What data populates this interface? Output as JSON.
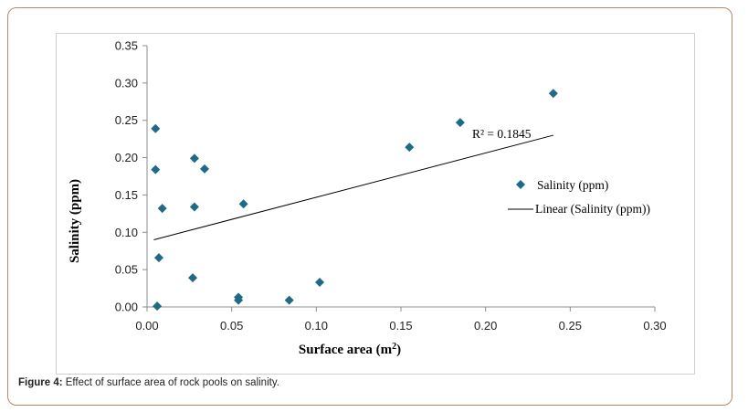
{
  "chart_data": {
    "type": "scatter",
    "title": "",
    "xlabel": "Surface area (m",
    "xlabel_sup": "2",
    "xlabel_end": ")",
    "ylabel": "Salinity (ppm)",
    "xlim": [
      0,
      0.3
    ],
    "ylim": [
      0,
      0.35
    ],
    "x_ticks": [
      "0.00",
      "0.05",
      "0.10",
      "0.15",
      "0.20",
      "0.25",
      "0.30"
    ],
    "y_ticks": [
      "0.00",
      "0.05",
      "0.10",
      "0.15",
      "0.20",
      "0.25",
      "0.30",
      "0.35"
    ],
    "series": [
      {
        "name": "Salinity (ppm)",
        "marker": "diamond",
        "color": "#1f6b85",
        "points": [
          [
            0.006,
            0.001
          ],
          [
            0.007,
            0.066
          ],
          [
            0.005,
            0.184
          ],
          [
            0.005,
            0.239
          ],
          [
            0.009,
            0.132
          ],
          [
            0.027,
            0.039
          ],
          [
            0.028,
            0.199
          ],
          [
            0.028,
            0.134
          ],
          [
            0.034,
            0.185
          ],
          [
            0.054,
            0.013
          ],
          [
            0.054,
            0.009
          ],
          [
            0.057,
            0.138
          ],
          [
            0.084,
            0.009
          ],
          [
            0.102,
            0.033
          ],
          [
            0.155,
            0.214
          ],
          [
            0.185,
            0.247
          ],
          [
            0.24,
            0.286
          ]
        ]
      }
    ],
    "trendline": {
      "name": "Linear (Salinity (ppm))",
      "color": "#000000",
      "x_range": [
        0.004,
        0.24
      ],
      "y_range": [
        0.09,
        0.23
      ]
    },
    "annotation": "R² = 0.1845"
  },
  "caption": {
    "label": "Figure 4:",
    "text": " Effect of surface area of rock pools on salinity."
  }
}
